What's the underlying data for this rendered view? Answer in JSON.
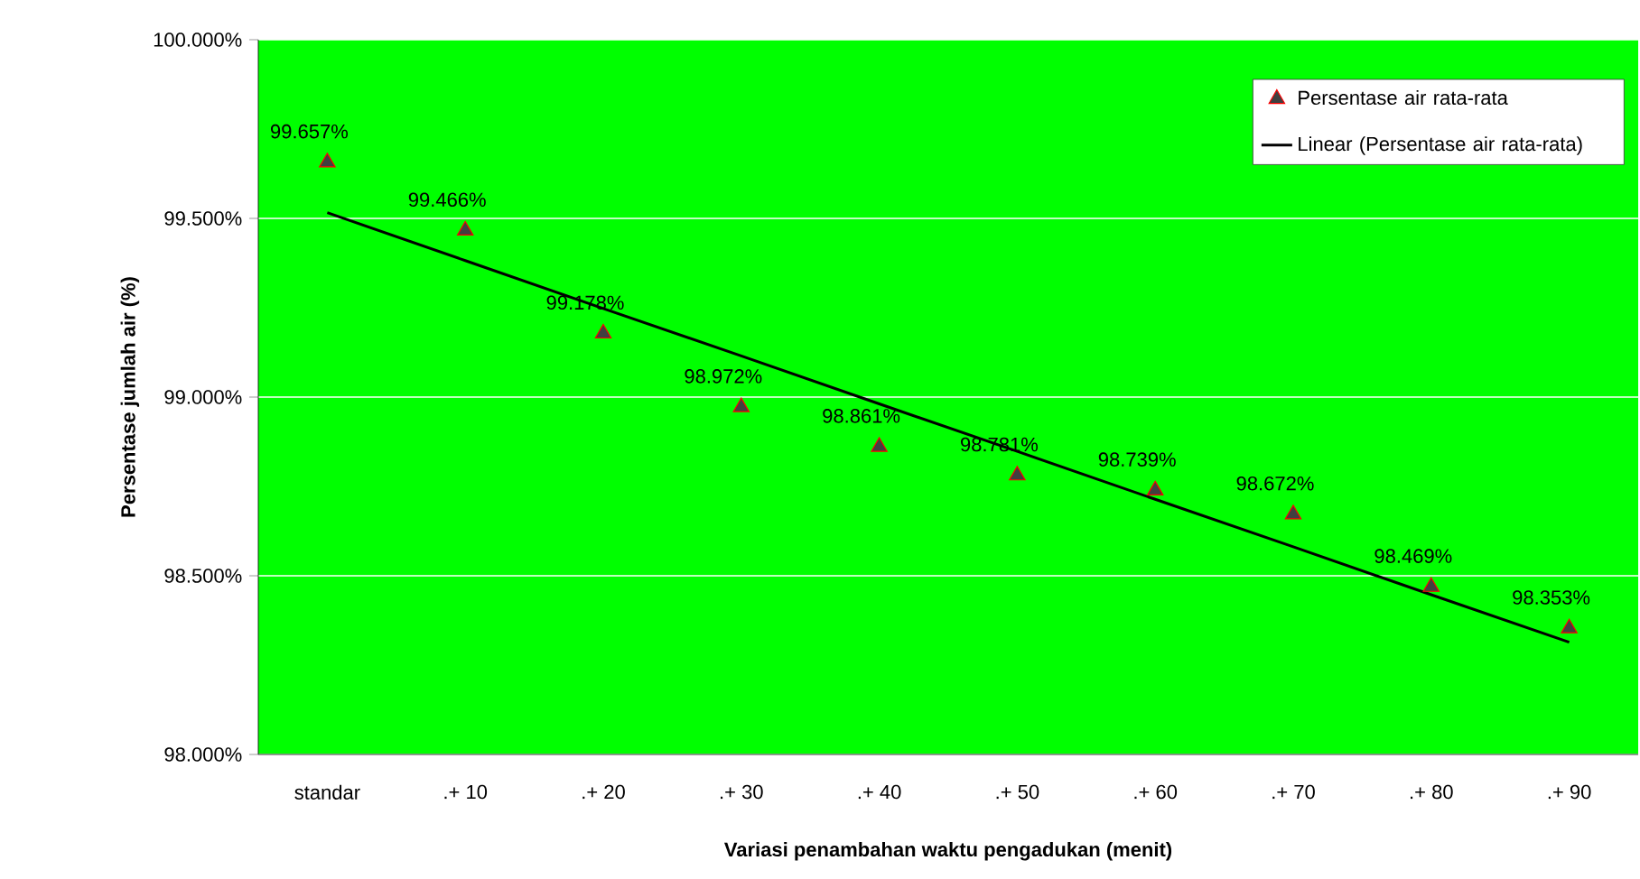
{
  "chart_data": {
    "type": "scatter",
    "xlabel": "Variasi penambahan waktu pengadukan (menit)",
    "ylabel": "Persentase jumlah air (%)",
    "categories": [
      "standar",
      ".+ 10",
      ".+ 20",
      ".+ 30",
      ".+ 40",
      ".+ 50",
      ".+ 60",
      ".+ 70",
      ".+ 80",
      ".+ 90"
    ],
    "series": [
      {
        "name": "Persentase air rata-rata",
        "marker": "triangle",
        "color": "#404040",
        "values": [
          99.657,
          99.466,
          99.178,
          98.972,
          98.861,
          98.781,
          98.739,
          98.672,
          98.469,
          98.353
        ],
        "value_labels": [
          "99.657%",
          "99.466%",
          "99.178%",
          "98.972%",
          "98.861%",
          "98.781%",
          "98.739%",
          "98.672%",
          "98.469%",
          "98.353%"
        ]
      },
      {
        "name": "Linear (Persentase air rata-rata)",
        "type": "line",
        "marker": "none",
        "line_style": "solid",
        "color": "#000000",
        "values": [
          99.516,
          99.382,
          99.248,
          99.115,
          98.981,
          98.848,
          98.714,
          98.581,
          98.447,
          98.314
        ]
      }
    ],
    "ylim": [
      98,
      100
    ],
    "yticks": [
      {
        "value": 98,
        "label": "98.000%"
      },
      {
        "value": 98.5,
        "label": "98.500%"
      },
      {
        "value": 99,
        "label": "99.000%"
      },
      {
        "value": 99.5,
        "label": "99.500%"
      },
      {
        "value": 100,
        "label": "100.000%"
      }
    ],
    "grid": "y",
    "legend": "top right"
  }
}
